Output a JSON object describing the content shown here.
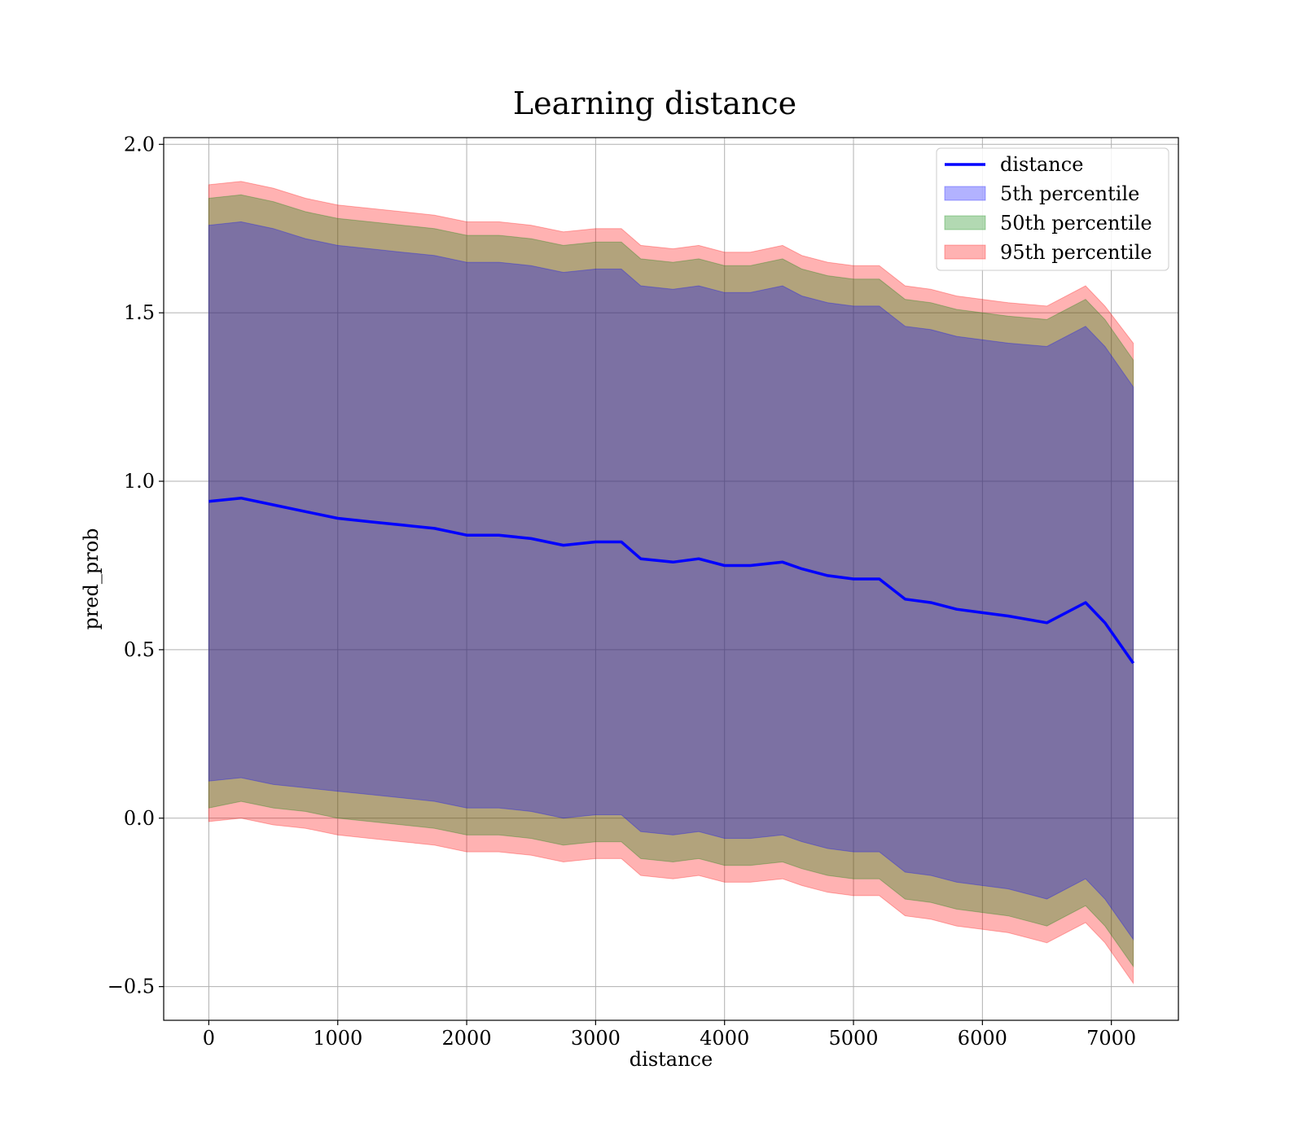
{
  "chart_data": {
    "type": "area",
    "title": "Learning distance",
    "xlabel": "distance",
    "ylabel": "pred_prob",
    "xlim": [
      -350,
      7520
    ],
    "ylim": [
      -0.6,
      2.02
    ],
    "xticks": [
      0,
      1000,
      2000,
      3000,
      4000,
      5000,
      6000,
      7000
    ],
    "xtick_labels": [
      "0",
      "1000",
      "2000",
      "3000",
      "4000",
      "5000",
      "6000",
      "7000"
    ],
    "yticks": [
      -0.5,
      0.0,
      0.5,
      1.0,
      1.5,
      2.0
    ],
    "ytick_labels": [
      "−0.5",
      "0.0",
      "0.5",
      "1.0",
      "1.5",
      "2.0"
    ],
    "grid": true,
    "legend_position": "top-right",
    "x": [
      0,
      250,
      500,
      750,
      1000,
      1250,
      1500,
      1750,
      2000,
      2250,
      2500,
      2750,
      3000,
      3200,
      3350,
      3600,
      3800,
      4000,
      4200,
      4450,
      4600,
      4800,
      5000,
      5200,
      5400,
      5600,
      5800,
      6000,
      6200,
      6500,
      6800,
      6950,
      7170
    ],
    "series": [
      {
        "name": "distance",
        "kind": "line",
        "color": "#0000ff",
        "values": [
          0.94,
          0.95,
          0.93,
          0.91,
          0.89,
          0.88,
          0.87,
          0.86,
          0.84,
          0.84,
          0.83,
          0.81,
          0.82,
          0.82,
          0.77,
          0.76,
          0.77,
          0.75,
          0.75,
          0.76,
          0.74,
          0.72,
          0.71,
          0.71,
          0.65,
          0.64,
          0.62,
          0.61,
          0.6,
          0.58,
          0.64,
          0.58,
          0.46
        ]
      },
      {
        "name": "5th percentile",
        "kind": "band",
        "color": "#0000ff",
        "upper": [
          1.76,
          1.77,
          1.75,
          1.72,
          1.7,
          1.69,
          1.68,
          1.67,
          1.65,
          1.65,
          1.64,
          1.62,
          1.63,
          1.63,
          1.58,
          1.57,
          1.58,
          1.56,
          1.56,
          1.58,
          1.55,
          1.53,
          1.52,
          1.52,
          1.46,
          1.45,
          1.43,
          1.42,
          1.41,
          1.4,
          1.46,
          1.4,
          1.28
        ],
        "lower": [
          0.11,
          0.12,
          0.1,
          0.09,
          0.08,
          0.07,
          0.06,
          0.05,
          0.03,
          0.03,
          0.02,
          0.0,
          0.01,
          0.01,
          -0.04,
          -0.05,
          -0.04,
          -0.06,
          -0.06,
          -0.05,
          -0.07,
          -0.09,
          -0.1,
          -0.1,
          -0.16,
          -0.17,
          -0.19,
          -0.2,
          -0.21,
          -0.24,
          -0.18,
          -0.24,
          -0.36
        ]
      },
      {
        "name": "50th percentile",
        "kind": "band",
        "color": "#008000",
        "upper": [
          1.84,
          1.85,
          1.83,
          1.8,
          1.78,
          1.77,
          1.76,
          1.75,
          1.73,
          1.73,
          1.72,
          1.7,
          1.71,
          1.71,
          1.66,
          1.65,
          1.66,
          1.64,
          1.64,
          1.66,
          1.63,
          1.61,
          1.6,
          1.6,
          1.54,
          1.53,
          1.51,
          1.5,
          1.49,
          1.48,
          1.54,
          1.48,
          1.36
        ],
        "lower": [
          0.03,
          0.05,
          0.03,
          0.02,
          0.0,
          -0.01,
          -0.02,
          -0.03,
          -0.05,
          -0.05,
          -0.06,
          -0.08,
          -0.07,
          -0.07,
          -0.12,
          -0.13,
          -0.12,
          -0.14,
          -0.14,
          -0.13,
          -0.15,
          -0.17,
          -0.18,
          -0.18,
          -0.24,
          -0.25,
          -0.27,
          -0.28,
          -0.29,
          -0.32,
          -0.26,
          -0.32,
          -0.44
        ]
      },
      {
        "name": "95th percentile",
        "kind": "band",
        "color": "#ff0000",
        "upper": [
          1.88,
          1.89,
          1.87,
          1.84,
          1.82,
          1.81,
          1.8,
          1.79,
          1.77,
          1.77,
          1.76,
          1.74,
          1.75,
          1.75,
          1.7,
          1.69,
          1.7,
          1.68,
          1.68,
          1.7,
          1.67,
          1.65,
          1.64,
          1.64,
          1.58,
          1.57,
          1.55,
          1.54,
          1.53,
          1.52,
          1.58,
          1.52,
          1.41
        ],
        "lower": [
          -0.01,
          0.0,
          -0.02,
          -0.03,
          -0.05,
          -0.06,
          -0.07,
          -0.08,
          -0.1,
          -0.1,
          -0.11,
          -0.13,
          -0.12,
          -0.12,
          -0.17,
          -0.18,
          -0.17,
          -0.19,
          -0.19,
          -0.18,
          -0.2,
          -0.22,
          -0.23,
          -0.23,
          -0.29,
          -0.3,
          -0.32,
          -0.33,
          -0.34,
          -0.37,
          -0.31,
          -0.37,
          -0.49
        ]
      }
    ]
  }
}
